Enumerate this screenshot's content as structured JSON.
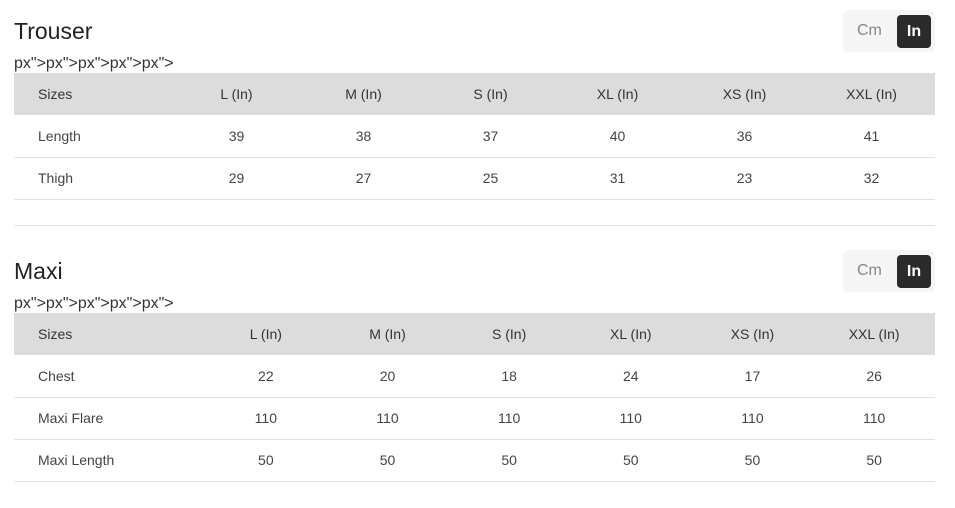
{
  "tables": [
    {
      "title": "Trouser",
      "units": {
        "cm": "Cm",
        "in": "In",
        "selected": "In"
      },
      "headers": [
        "Sizes",
        "L (In)",
        "M (In)",
        "S (In)",
        "XL (In)",
        "XS (In)",
        "XXL (In)"
      ],
      "rows": [
        [
          "Length",
          "39",
          "38",
          "37",
          "40",
          "36",
          "41"
        ],
        [
          "Thigh",
          "29",
          "27",
          "25",
          "31",
          "23",
          "32"
        ]
      ]
    },
    {
      "title": "Maxi",
      "units": {
        "cm": "Cm",
        "in": "In",
        "selected": "In"
      },
      "headers": [
        "Sizes",
        "L (In)",
        "M (In)",
        "S (In)",
        "XL (In)",
        "XS (In)",
        "XXL (In)"
      ],
      "rows": [
        [
          "Chest",
          "22",
          "20",
          "18",
          "24",
          "17",
          "26"
        ],
        [
          "Maxi Flare",
          "110",
          "110",
          "110",
          "110",
          "110",
          "110"
        ],
        [
          "Maxi Length",
          "50",
          "50",
          "50",
          "50",
          "50",
          "50"
        ]
      ]
    }
  ],
  "colors": {
    "header_bg": "#dcdcdc",
    "active_toggle": "#2b2b2b"
  }
}
